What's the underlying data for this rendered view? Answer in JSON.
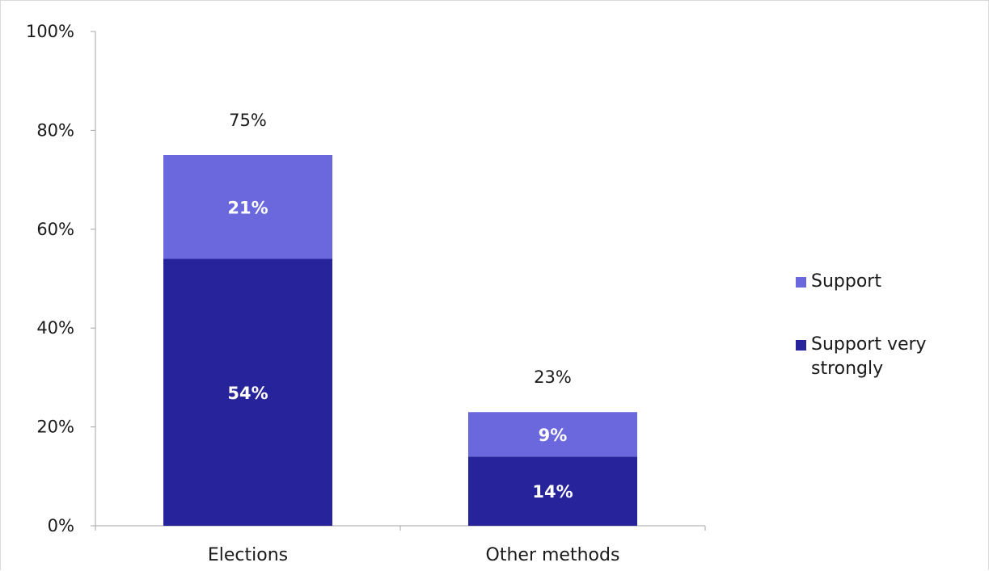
{
  "chart_data": {
    "type": "bar",
    "stacked": true,
    "categories": [
      "Elections",
      "Other methods"
    ],
    "series": [
      {
        "name": "Support very strongly",
        "values": [
          54,
          14
        ],
        "color": "#27239a"
      },
      {
        "name": "Support",
        "values": [
          21,
          9
        ],
        "color": "#6b67dc"
      }
    ],
    "totals": [
      75,
      23
    ],
    "ylim": [
      0,
      100
    ],
    "yticks": [
      0,
      20,
      40,
      60,
      80,
      100
    ],
    "ytick_labels": [
      "0%",
      "20%",
      "40%",
      "60%",
      "80%",
      "100%"
    ],
    "value_suffix": "%",
    "legend_order": [
      "Support",
      "Support very strongly"
    ],
    "legend_position": "right",
    "grid": false
  }
}
